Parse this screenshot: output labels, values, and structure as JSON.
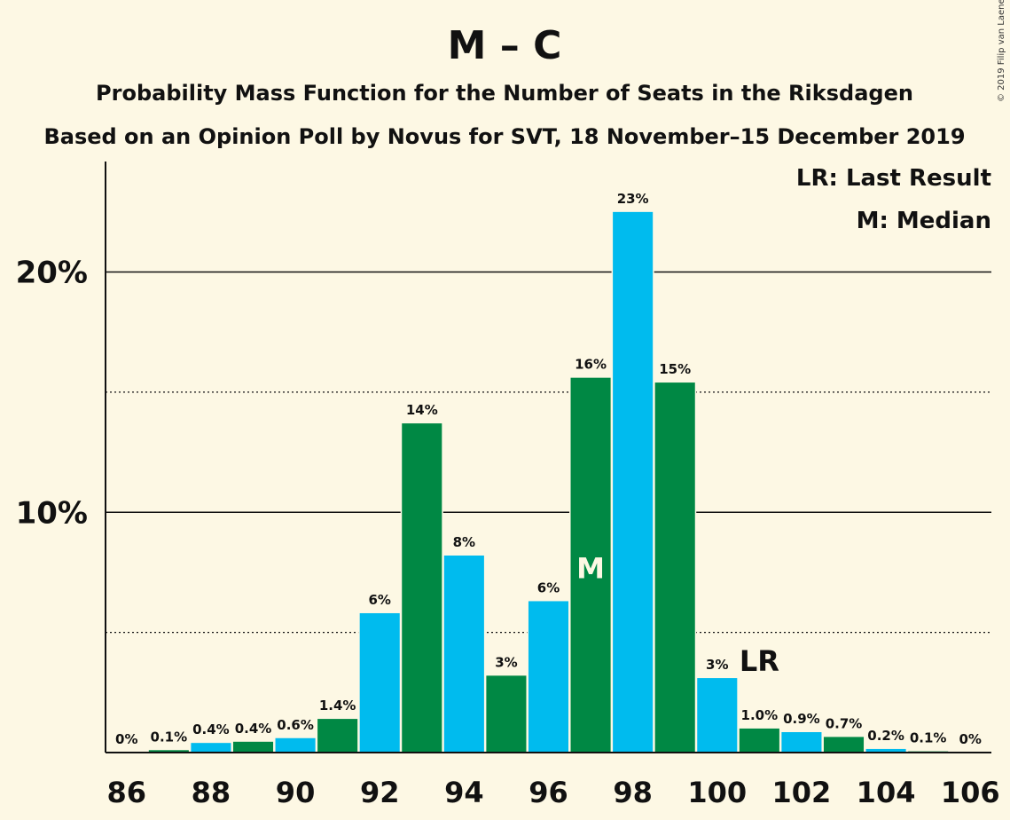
{
  "chart_data": {
    "type": "bar",
    "title": "M – C",
    "subtitle": "Probability Mass Function for the Number of Seats in the Riksdagen",
    "subtitle2": "Based on an Opinion Poll by Novus for SVT, 18 November–15 December 2019",
    "copyright": "© 2019 Filip van Laenen",
    "legend": [
      "LR: Last Result",
      "M: Median"
    ],
    "legend_position": "top-right",
    "x": [
      86,
      87,
      88,
      89,
      90,
      91,
      92,
      93,
      94,
      95,
      96,
      97,
      98,
      99,
      100,
      101,
      102,
      103,
      104,
      105,
      106
    ],
    "values": [
      0,
      0.1,
      0.4,
      0.45,
      0.6,
      1.4,
      5.8,
      13.7,
      8.2,
      3.2,
      6.3,
      15.6,
      22.5,
      15.4,
      3.1,
      1.0,
      0.85,
      0.65,
      0.15,
      0.05,
      0
    ],
    "labels": [
      "0%",
      "0.1%",
      "0.4%",
      "0.4%",
      "0.6%",
      "1.4%",
      "6%",
      "14%",
      "8%",
      "3%",
      "6%",
      "16%",
      "23%",
      "15%",
      "3%",
      "1.0%",
      "0.9%",
      "0.7%",
      "0.2%",
      "0.1%",
      "0%"
    ],
    "xticks": [
      "86",
      "88",
      "90",
      "92",
      "94",
      "96",
      "98",
      "100",
      "102",
      "104",
      "106"
    ],
    "yticks": [
      {
        "value": 10,
        "label": "10%"
      },
      {
        "value": 20,
        "label": "20%"
      }
    ],
    "ylim": [
      0,
      24.6
    ],
    "minor_gridlines": [
      5,
      15
    ],
    "median": {
      "x": 97,
      "label": "M"
    },
    "last_result": {
      "x": 101,
      "label": "LR"
    },
    "colors": {
      "blue": "#00bbee",
      "green": "#008844",
      "background": "#fdf8e4",
      "median_text": "#fdf8e4"
    }
  }
}
